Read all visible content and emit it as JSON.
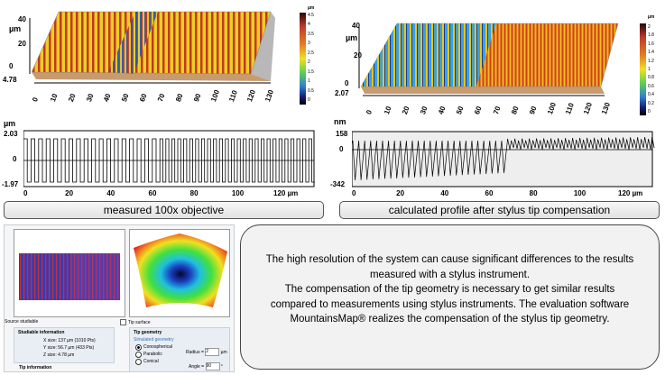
{
  "colors": {
    "scale": [
      "#000000",
      "#3a0a0a",
      "#7a1a10",
      "#c0392b",
      "#e67e22",
      "#f1c40f",
      "#e8f020",
      "#7fd84a",
      "#2ecc71",
      "#1abc9c",
      "#3498db",
      "#1f3fa0",
      "#0a1050",
      "#000000"
    ]
  },
  "left_3d": {
    "unit": "µm",
    "y_ticks": [
      "40",
      "20",
      "0"
    ],
    "z_min": "4.78",
    "x_ticks": [
      "0",
      "10",
      "20",
      "30",
      "40",
      "50",
      "60",
      "70",
      "80",
      "90",
      "100",
      "110",
      "120",
      "130"
    ],
    "scale_unit": "µm",
    "scale_ticks": [
      "4.5",
      "4",
      "3.5",
      "3",
      "2.5",
      "2",
      "1.5",
      "1",
      "0.5",
      "0"
    ]
  },
  "right_3d": {
    "unit": "µm",
    "y_ticks": [
      "40",
      "20",
      "0"
    ],
    "z_min": "2.07",
    "x_ticks": [
      "0",
      "10",
      "20",
      "30",
      "40",
      "50",
      "60",
      "70",
      "80",
      "90",
      "100",
      "110",
      "120",
      "130"
    ],
    "scale_unit": "µm",
    "scale_ticks": [
      "2",
      "1.8",
      "1.6",
      "1.4",
      "1.2",
      "1",
      "0.8",
      "0.6",
      "0.4",
      "0.2",
      "0"
    ]
  },
  "left_profile": {
    "y_unit": "µm",
    "y_ticks": [
      "2.03",
      "0",
      "-1.97"
    ],
    "x_ticks": [
      "0",
      "20",
      "40",
      "60",
      "80",
      "100",
      "120 µm"
    ]
  },
  "right_profile": {
    "y_unit": "nm",
    "y_ticks": [
      "158",
      "0",
      "-342"
    ],
    "x_ticks": [
      "0",
      "20",
      "40",
      "60",
      "80",
      "100",
      "120 µm"
    ]
  },
  "captions": {
    "left": "measured  100x objective",
    "right": "calculated profile after stylus tip compensation"
  },
  "info": {
    "p1": "The high resolution of the  system can cause significant differences to the results measured with a stylus instrument.",
    "p2": "The compensation of the tip geometry is necessary to get similar results compared to measurements using stylus instruments. The evaluation software MountainsMap® realizes the compensation of the stylus tip geometry."
  },
  "dialog": {
    "source_label": "Source studiable",
    "tip_surface_label": "Tip surface",
    "studiable_info_title": "Studiable information",
    "x_size": "X size:   137 µm (1010 Pts)",
    "y_size": "Y size:   56.7 µm (433 Pts)",
    "z_size": "Z size:   4.78 µm",
    "tip_geometry_title": "Tip geometry",
    "simulated_geometry": "Simulated geometry",
    "opt_conospherical": "Conospherical",
    "opt_parabolic": "Parabolic",
    "opt_conical": "Conical",
    "radius_label": "Radius =",
    "radius_value": "2",
    "radius_unit": "µm",
    "angle_label": "Angle =",
    "angle_value": "90",
    "angle_unit": "°",
    "tip_information_title": "Tip information"
  }
}
